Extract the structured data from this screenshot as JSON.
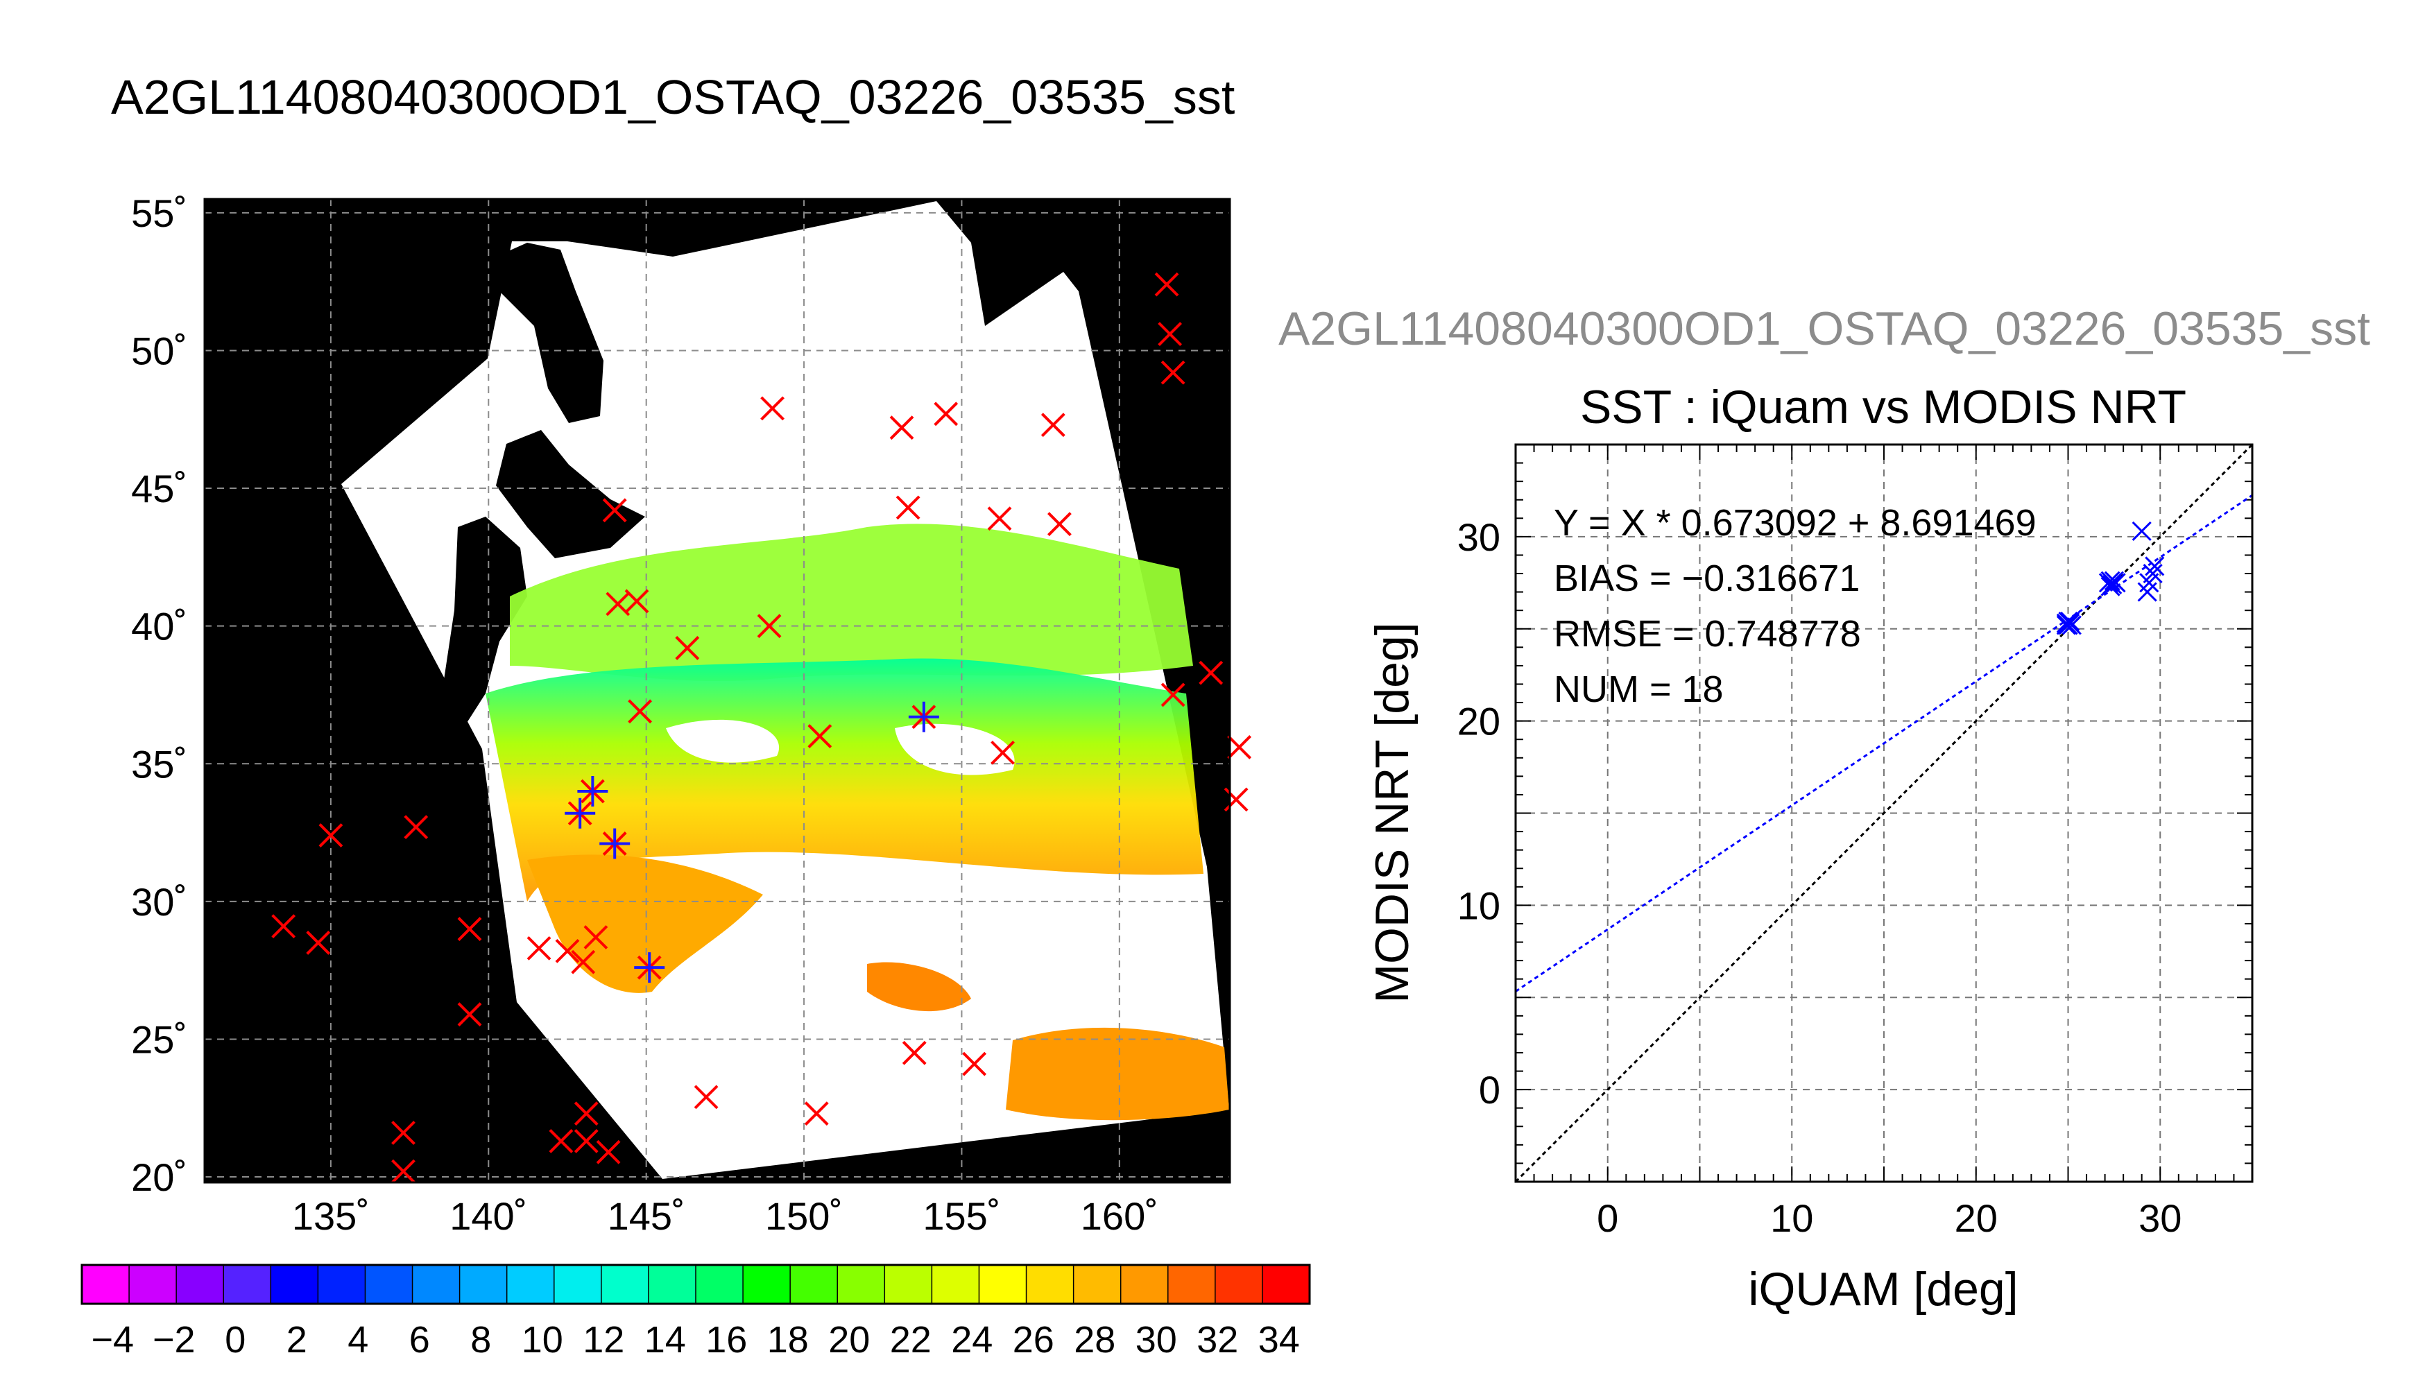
{
  "map": {
    "title": "A2GL11408040300OD1_OSTAQ_03226_03535_sst",
    "lat_ticks": [
      "55˚",
      "50˚",
      "45˚",
      "40˚",
      "35˚",
      "30˚",
      "25˚",
      "20˚"
    ],
    "lon_ticks": [
      "135˚",
      "140˚",
      "145˚",
      "150˚",
      "155˚",
      "160˚"
    ],
    "lon_range": [
      131,
      163.5
    ],
    "lat_range": [
      19.8,
      55.5
    ],
    "colors": {
      "land": "#000000",
      "cloud_or_no_data": "#ffffff",
      "grid": "#8c8c8c",
      "observation_marker": "#ff0000",
      "matchup_marker": "#1a1aff"
    }
  },
  "colorbar": {
    "range": [
      -5,
      35
    ],
    "tick_labels": [
      "−4",
      "−2",
      "0",
      "2",
      "4",
      "6",
      "8",
      "10",
      "12",
      "14",
      "16",
      "18",
      "20",
      "22",
      "24",
      "26",
      "28",
      "30",
      "32",
      "34"
    ],
    "colors": [
      "#ff00ff",
      "#cc00ff",
      "#8800ff",
      "#5522ff",
      "#0000ff",
      "#0022ff",
      "#0055ff",
      "#0088ff",
      "#00aaff",
      "#00ccff",
      "#00eeee",
      "#00ffcc",
      "#00ff99",
      "#00ff66",
      "#00ff00",
      "#44ff00",
      "#88ff00",
      "#bbff00",
      "#ddff00",
      "#ffff00",
      "#ffdd00",
      "#ffbb00",
      "#ff9900",
      "#ff6600",
      "#ff3300",
      "#ff0000"
    ]
  },
  "scatter": {
    "subtitle": "A2GL11408040300OD1_OSTAQ_03226_03535_sst",
    "title": "SST : iQuam vs MODIS NRT",
    "xlabel": "iQUAM [deg]",
    "ylabel": "MODIS NRT [deg]",
    "equation": "Y = X * 0.673092 + 8.691469",
    "bias": "BIAS = −0.316671",
    "rmse": "RMSE = 0.748778",
    "num": "NUM = 18",
    "x_ticks": [
      "0",
      "10",
      "20",
      "30"
    ],
    "y_ticks": [
      "0",
      "10",
      "20",
      "30"
    ]
  },
  "chart_data": [
    {
      "type": "heatmap",
      "title": "A2GL11408040300OD1_OSTAQ_03226_03535_sst",
      "xlim": [
        131,
        163.5
      ],
      "ylim": [
        19.8,
        55.5
      ],
      "colorbar_range": [
        -5,
        35
      ],
      "observations": [
        {
          "lon": 161.5,
          "lat": 52.4
        },
        {
          "lon": 161.6,
          "lat": 50.6
        },
        {
          "lon": 161.7,
          "lat": 49.2
        },
        {
          "lon": 149.0,
          "lat": 47.9
        },
        {
          "lon": 153.1,
          "lat": 47.2
        },
        {
          "lon": 154.5,
          "lat": 47.7
        },
        {
          "lon": 157.9,
          "lat": 47.3
        },
        {
          "lon": 144.0,
          "lat": 44.2
        },
        {
          "lon": 153.3,
          "lat": 44.3
        },
        {
          "lon": 156.2,
          "lat": 43.9
        },
        {
          "lon": 158.1,
          "lat": 43.7
        },
        {
          "lon": 144.1,
          "lat": 40.8
        },
        {
          "lon": 144.7,
          "lat": 40.9
        },
        {
          "lon": 146.3,
          "lat": 39.2
        },
        {
          "lon": 148.9,
          "lat": 40.0
        },
        {
          "lon": 162.9,
          "lat": 38.3
        },
        {
          "lon": 161.7,
          "lat": 37.5
        },
        {
          "lon": 144.8,
          "lat": 36.9
        },
        {
          "lon": 150.5,
          "lat": 36.0
        },
        {
          "lon": 156.3,
          "lat": 35.4
        },
        {
          "lon": 163.8,
          "lat": 35.6
        },
        {
          "lon": 163.7,
          "lat": 33.7
        },
        {
          "lon": 135.0,
          "lat": 32.4
        },
        {
          "lon": 137.7,
          "lat": 32.7
        },
        {
          "lon": 133.5,
          "lat": 29.1
        },
        {
          "lon": 134.6,
          "lat": 28.5
        },
        {
          "lon": 139.4,
          "lat": 29.0
        },
        {
          "lon": 141.6,
          "lat": 28.3
        },
        {
          "lon": 142.5,
          "lat": 28.2
        },
        {
          "lon": 143.0,
          "lat": 27.8
        },
        {
          "lon": 143.4,
          "lat": 28.7
        },
        {
          "lon": 139.4,
          "lat": 25.9
        },
        {
          "lon": 153.5,
          "lat": 24.5
        },
        {
          "lon": 155.4,
          "lat": 24.1
        },
        {
          "lon": 146.9,
          "lat": 22.9
        },
        {
          "lon": 150.4,
          "lat": 22.3
        },
        {
          "lon": 137.3,
          "lat": 21.6
        },
        {
          "lon": 137.3,
          "lat": 20.2
        },
        {
          "lon": 142.3,
          "lat": 21.3
        },
        {
          "lon": 143.1,
          "lat": 21.3
        },
        {
          "lon": 143.1,
          "lat": 22.3
        },
        {
          "lon": 143.8,
          "lat": 20.9
        }
      ],
      "matchups": [
        {
          "lon": 153.8,
          "lat": 36.7
        },
        {
          "lon": 143.3,
          "lat": 34.0
        },
        {
          "lon": 142.9,
          "lat": 33.2
        },
        {
          "lon": 144.0,
          "lat": 32.1
        },
        {
          "lon": 145.1,
          "lat": 27.6
        }
      ]
    },
    {
      "type": "scatter",
      "title": "SST : iQuam vs MODIS NRT",
      "xlabel": "iQUAM [deg]",
      "ylabel": "MODIS NRT [deg]",
      "xlim": [
        -5,
        35
      ],
      "ylim": [
        -5,
        35
      ],
      "grid": true,
      "points": [
        {
          "x": 24.9,
          "y": 25.3
        },
        {
          "x": 25.0,
          "y": 25.2
        },
        {
          "x": 25.1,
          "y": 25.3
        },
        {
          "x": 25.2,
          "y": 25.2
        },
        {
          "x": 24.9,
          "y": 25.2
        },
        {
          "x": 25.1,
          "y": 25.4
        },
        {
          "x": 27.2,
          "y": 27.5
        },
        {
          "x": 27.4,
          "y": 27.4
        },
        {
          "x": 27.5,
          "y": 27.6
        },
        {
          "x": 27.3,
          "y": 27.3
        },
        {
          "x": 27.6,
          "y": 27.5
        },
        {
          "x": 29.0,
          "y": 30.3
        },
        {
          "x": 29.3,
          "y": 27.0
        },
        {
          "x": 29.4,
          "y": 27.5
        },
        {
          "x": 29.6,
          "y": 28.0
        },
        {
          "x": 29.7,
          "y": 28.4
        },
        {
          "x": 27.3,
          "y": 27.6
        },
        {
          "x": 25.0,
          "y": 25.4
        }
      ],
      "lines": [
        {
          "name": "1:1",
          "slope": 1.0,
          "intercept": 0.0,
          "color": "#000000"
        },
        {
          "name": "fit",
          "slope": 0.673092,
          "intercept": 8.691469,
          "color": "#0000ff"
        }
      ]
    }
  ]
}
